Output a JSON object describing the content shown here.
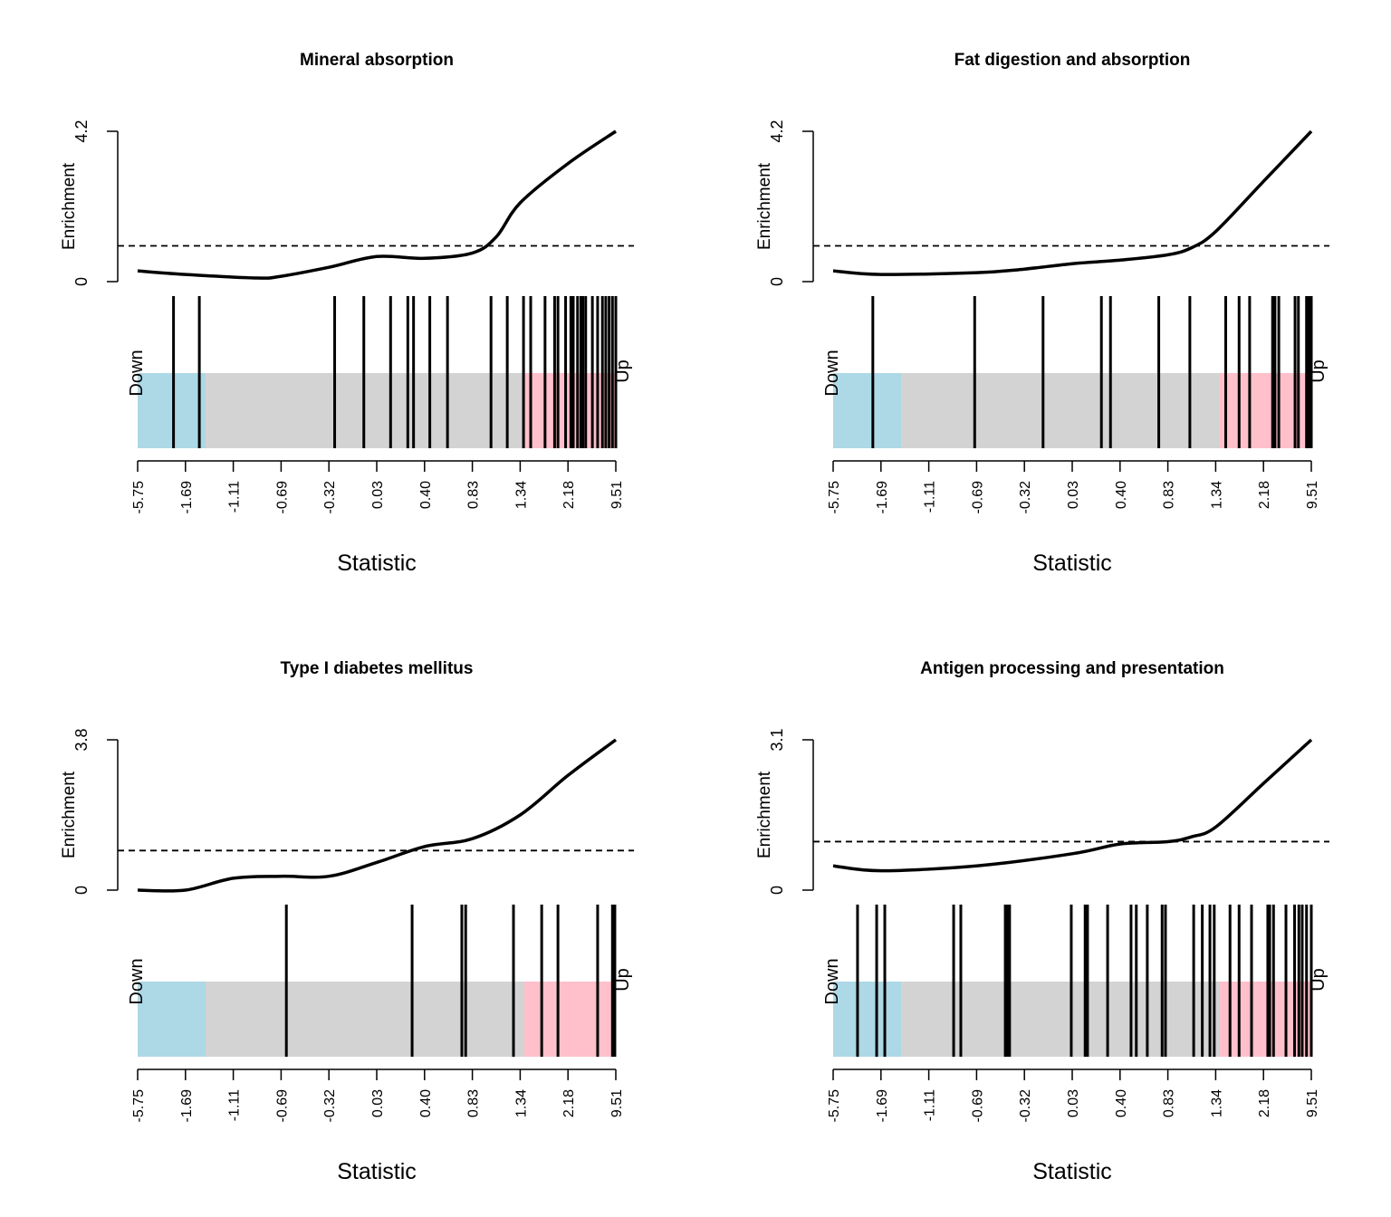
{
  "colors": {
    "down": "#add8e6",
    "middle": "#d3d3d3",
    "up": "#ffc0cb",
    "line": "#000000"
  },
  "chart_data": [
    {
      "type": "line",
      "title": "Mineral absorption",
      "xlabel": "Statistic",
      "ylabel": "Enrichment",
      "down_label": "Down",
      "up_label": "Up",
      "y_ticks": [
        "0",
        "4.2"
      ],
      "ylim": [
        0,
        4.2
      ],
      "x_tick_labels": [
        "-5.75",
        "-1.69",
        "-1.11",
        "-0.69",
        "-0.32",
        "0.03",
        "0.40",
        "0.83",
        "1.34",
        "2.18",
        "9.51"
      ],
      "reference_line": 1,
      "curve": {
        "x": [
          0,
          0.1,
          0.25,
          0.3,
          0.4,
          0.5,
          0.6,
          0.7,
          0.75,
          0.8,
          0.9,
          1.0
        ],
        "y": [
          0.3,
          0.2,
          0.1,
          0.15,
          0.4,
          0.7,
          0.65,
          0.8,
          1.25,
          2.2,
          3.3,
          4.2
        ]
      },
      "barcode_positions": [
        0.075,
        0.129,
        0.412,
        0.473,
        0.529,
        0.565,
        0.577,
        0.611,
        0.648,
        0.739,
        0.773,
        0.807,
        0.822,
        0.852,
        0.872,
        0.879,
        0.895,
        0.906,
        0.911,
        0.92,
        0.927,
        0.931,
        0.937,
        0.951,
        0.962,
        0.972,
        0.979,
        0.986,
        0.993,
        1.0
      ]
    },
    {
      "type": "line",
      "title": "Fat digestion and absorption",
      "xlabel": "Statistic",
      "ylabel": "Enrichment",
      "down_label": "Down",
      "up_label": "Up",
      "y_ticks": [
        "0",
        "4.2"
      ],
      "ylim": [
        0,
        4.2
      ],
      "x_tick_labels": [
        "-5.75",
        "-1.69",
        "-1.11",
        "-0.69",
        "-0.32",
        "0.03",
        "0.40",
        "0.83",
        "1.34",
        "2.18",
        "9.51"
      ],
      "reference_line": 1,
      "curve": {
        "x": [
          0,
          0.1,
          0.3,
          0.4,
          0.5,
          0.6,
          0.7,
          0.75,
          0.8,
          0.9,
          1.0
        ],
        "y": [
          0.3,
          0.2,
          0.25,
          0.35,
          0.5,
          0.6,
          0.75,
          0.95,
          1.4,
          2.8,
          4.2
        ]
      },
      "barcode_positions": [
        0.083,
        0.296,
        0.439,
        0.561,
        0.58,
        0.681,
        0.746,
        0.821,
        0.849,
        0.871,
        0.919,
        0.924,
        0.932,
        0.966,
        0.973,
        0.99,
        0.995,
        1.0
      ]
    },
    {
      "type": "line",
      "title": "Type I diabetes mellitus",
      "xlabel": "Statistic",
      "ylabel": "Enrichment",
      "down_label": "Down",
      "up_label": "Up",
      "y_ticks": [
        "0",
        "3.8"
      ],
      "ylim": [
        0,
        3.8
      ],
      "x_tick_labels": [
        "-5.75",
        "-1.69",
        "-1.11",
        "-0.69",
        "-0.32",
        "0.03",
        "0.40",
        "0.83",
        "1.34",
        "2.18",
        "9.51"
      ],
      "reference_line": 1,
      "curve": {
        "x": [
          0,
          0.1,
          0.2,
          0.3,
          0.4,
          0.5,
          0.6,
          0.7,
          0.8,
          0.9,
          1.0
        ],
        "y": [
          0,
          0.0,
          0.3,
          0.35,
          0.35,
          0.7,
          1.1,
          1.3,
          1.9,
          2.9,
          3.8
        ]
      },
      "barcode_positions": [
        0.311,
        0.574,
        0.678,
        0.686,
        0.786,
        0.845,
        0.879,
        0.962,
        0.993,
        0.998
      ]
    },
    {
      "type": "line",
      "title": "Antigen processing and presentation",
      "xlabel": "Statistic",
      "ylabel": "Enrichment",
      "down_label": "Down",
      "up_label": "Up",
      "y_ticks": [
        "0",
        "3.1"
      ],
      "ylim": [
        0,
        3.1
      ],
      "x_tick_labels": [
        "-5.75",
        "-1.69",
        "-1.11",
        "-0.69",
        "-0.32",
        "0.03",
        "0.40",
        "0.83",
        "1.34",
        "2.18",
        "9.51"
      ],
      "reference_line": 1,
      "curve": {
        "x": [
          0,
          0.1,
          0.3,
          0.5,
          0.6,
          0.7,
          0.75,
          0.8,
          0.9,
          1.0
        ],
        "y": [
          0.5,
          0.4,
          0.5,
          0.75,
          0.95,
          1.0,
          1.1,
          1.3,
          2.2,
          3.1
        ]
      },
      "barcode_positions": [
        0.051,
        0.091,
        0.108,
        0.252,
        0.267,
        0.36,
        0.364,
        0.369,
        0.498,
        0.527,
        0.532,
        0.574,
        0.623,
        0.634,
        0.657,
        0.688,
        0.695,
        0.754,
        0.772,
        0.788,
        0.797,
        0.83,
        0.849,
        0.875,
        0.909,
        0.913,
        0.921,
        0.947,
        0.965,
        0.974,
        0.981,
        0.99,
        1.0
      ]
    }
  ]
}
